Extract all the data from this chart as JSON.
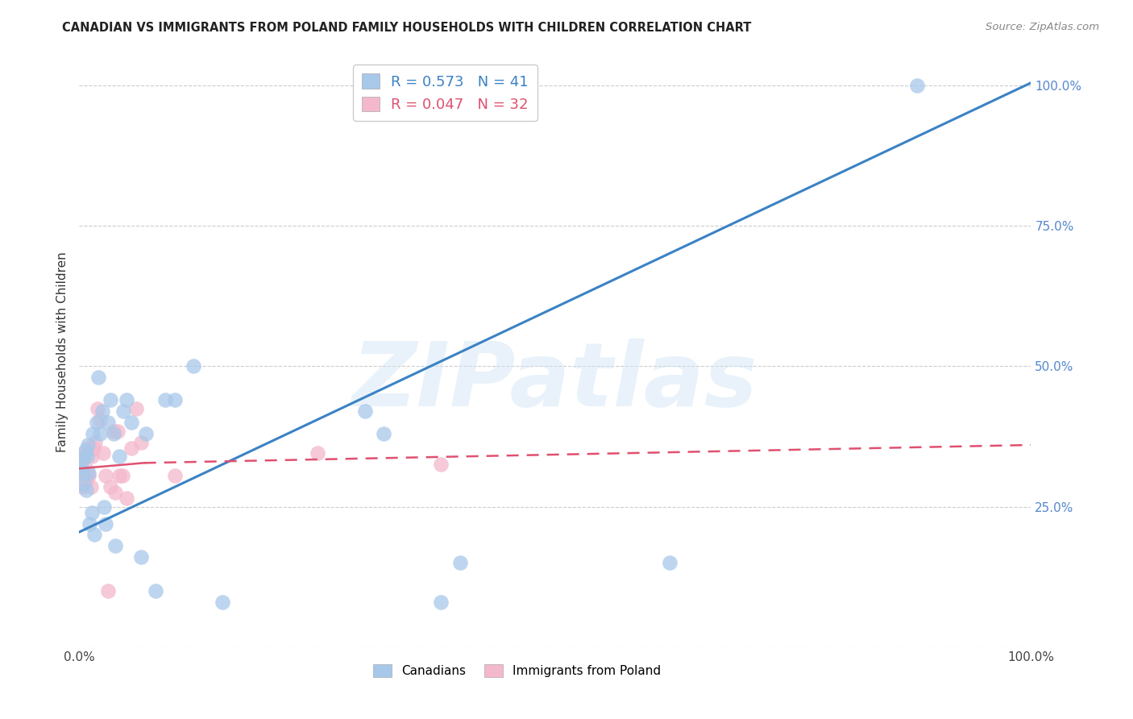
{
  "title": "CANADIAN VS IMMIGRANTS FROM POLAND FAMILY HOUSEHOLDS WITH CHILDREN CORRELATION CHART",
  "source": "Source: ZipAtlas.com",
  "ylabel": "Family Households with Children",
  "watermark": "ZIPatlas",
  "canadians": {
    "x": [
      0.001,
      0.002,
      0.003,
      0.004,
      0.005,
      0.006,
      0.007,
      0.008,
      0.009,
      0.01,
      0.011,
      0.013,
      0.014,
      0.016,
      0.018,
      0.02,
      0.022,
      0.024,
      0.026,
      0.028,
      0.03,
      0.033,
      0.036,
      0.038,
      0.042,
      0.046,
      0.05,
      0.055,
      0.065,
      0.07,
      0.08,
      0.09,
      0.1,
      0.12,
      0.15,
      0.3,
      0.32,
      0.38,
      0.4,
      0.62,
      0.88
    ],
    "y": [
      0.33,
      0.32,
      0.31,
      0.335,
      0.29,
      0.35,
      0.28,
      0.34,
      0.36,
      0.31,
      0.22,
      0.24,
      0.38,
      0.2,
      0.4,
      0.48,
      0.38,
      0.42,
      0.25,
      0.22,
      0.4,
      0.44,
      0.38,
      0.18,
      0.34,
      0.42,
      0.44,
      0.4,
      0.16,
      0.38,
      0.1,
      0.44,
      0.44,
      0.5,
      0.08,
      0.42,
      0.38,
      0.08,
      0.15,
      0.15,
      1.0
    ],
    "R": 0.573,
    "N": 41,
    "color": "#a8c8ea",
    "line_color": "#3b82c4"
  },
  "poland": {
    "x": [
      0.001,
      0.002,
      0.003,
      0.004,
      0.005,
      0.006,
      0.007,
      0.008,
      0.009,
      0.01,
      0.012,
      0.013,
      0.015,
      0.017,
      0.019,
      0.022,
      0.025,
      0.028,
      0.03,
      0.033,
      0.036,
      0.038,
      0.04,
      0.042,
      0.045,
      0.05,
      0.055,
      0.06,
      0.065,
      0.1,
      0.25,
      0.38
    ],
    "y": [
      0.335,
      0.315,
      0.285,
      0.34,
      0.345,
      0.305,
      0.295,
      0.315,
      0.355,
      0.305,
      0.285,
      0.34,
      0.355,
      0.365,
      0.425,
      0.405,
      0.345,
      0.305,
      0.1,
      0.285,
      0.385,
      0.275,
      0.385,
      0.305,
      0.305,
      0.265,
      0.355,
      0.425,
      0.365,
      0.305,
      0.345,
      0.325
    ],
    "R": 0.047,
    "N": 32,
    "color": "#f4b8cc",
    "line_color": "#e05070"
  },
  "can_line": {
    "x0": 0.0,
    "x1": 1.0,
    "y0": 0.205,
    "y1": 1.005
  },
  "pol_line_solid": {
    "x0": 0.0,
    "x1": 0.068,
    "y0": 0.318,
    "y1": 0.328
  },
  "pol_line_dash": {
    "x0": 0.068,
    "x1": 1.0,
    "y0": 0.328,
    "y1": 0.36
  },
  "xlim": [
    0,
    1.0
  ],
  "ylim": [
    0,
    1.05
  ],
  "background_color": "#ffffff",
  "grid_color": "#cccccc",
  "ytick_color": "#5588cc"
}
